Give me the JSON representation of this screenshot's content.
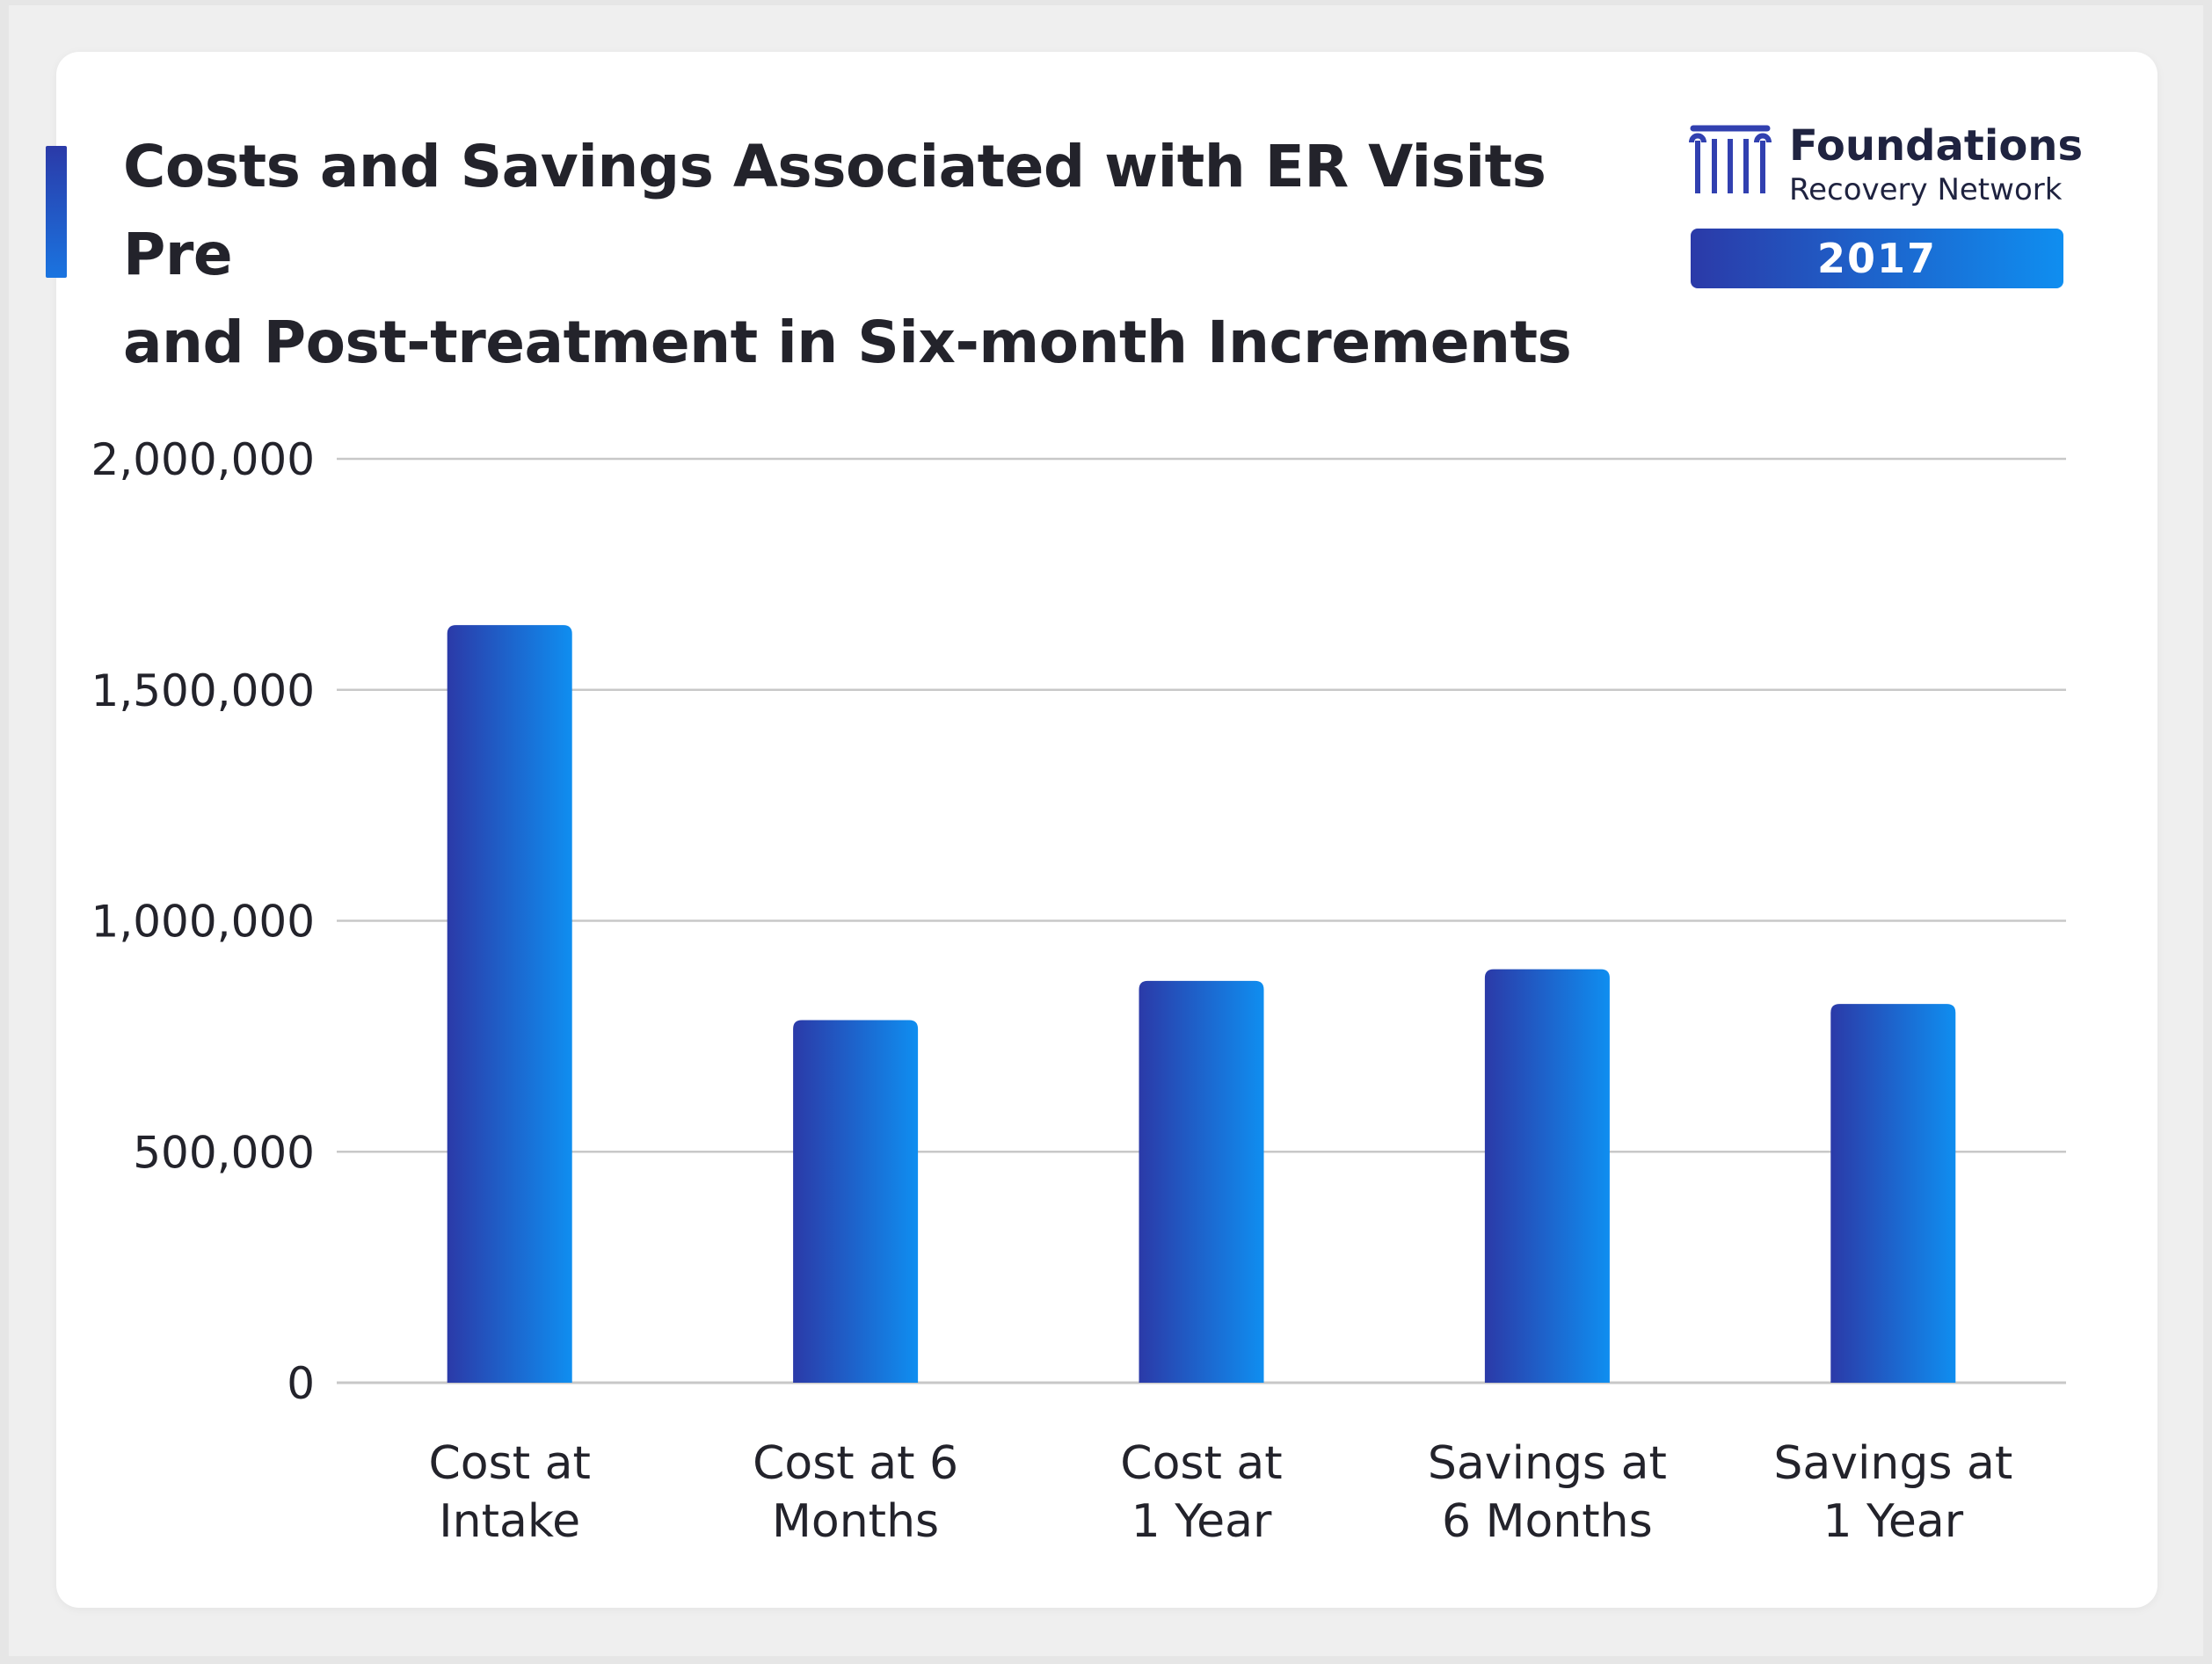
{
  "header": {
    "title_line1": "Costs and Savings Associated with ER Visits Pre",
    "title_line2": "and Post-treatment in Six-month Increments"
  },
  "logo": {
    "name": "Foundations",
    "subtitle": "Recovery Network",
    "icon": "column-pillars-icon"
  },
  "year_badge": "2017",
  "colors": {
    "bar_gradient_start": "#2b3aa8",
    "bar_gradient_end": "#0f8ef0",
    "grid": "#c8c8c8",
    "text": "#23232b"
  },
  "chart_data": {
    "type": "bar",
    "title": "Costs and Savings Associated with ER Visits Pre and Post-treatment in Six-month Increments",
    "categories": [
      [
        "Cost at",
        "Intake"
      ],
      [
        "Cost at 6",
        "Months"
      ],
      [
        "Cost at",
        "1 Year"
      ],
      [
        "Savings at",
        "6 Months"
      ],
      [
        "Savings at",
        "1 Year"
      ]
    ],
    "values": [
      1640000,
      785000,
      870000,
      895000,
      820000
    ],
    "ylim": [
      0,
      2000000
    ],
    "yticks": [
      0,
      500000,
      1000000,
      1500000,
      2000000
    ],
    "ytick_labels": [
      "0",
      "500,000",
      "1,000,000",
      "1,500,000",
      "2,000,000"
    ],
    "grid": true,
    "legend": "none"
  }
}
